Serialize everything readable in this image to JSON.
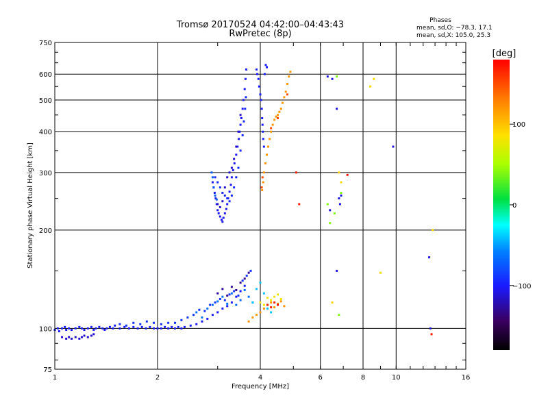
{
  "chart_data": {
    "type": "scatter",
    "title": "Tromsø 20170524 04:42:00–04:43:43",
    "subtitle": "RwPretec (8p)",
    "phase_box": {
      "title": "Phases",
      "line1": "mean, sd,O: −78.3, 17.1",
      "line2": "mean, sd,X: 105.0, 25.3"
    },
    "xlabel": "Frequency [MHz]",
    "ylabel": "Stationary phase Virtual Height [km]",
    "x_scale": "log",
    "y_scale": "log",
    "xlim": [
      1,
      16
    ],
    "ylim": [
      75,
      750
    ],
    "x_ticks": [
      {
        "value": 1,
        "label": "1"
      },
      {
        "value": 2,
        "label": "2"
      },
      {
        "value": 4,
        "label": "4"
      },
      {
        "value": 6,
        "label": "6"
      },
      {
        "value": 8,
        "label": "8"
      },
      {
        "value": 10,
        "label": "10"
      },
      {
        "value": 16,
        "label": "16"
      }
    ],
    "y_ticks": [
      {
        "value": 75,
        "label": "75"
      },
      {
        "value": 100,
        "label": "100"
      },
      {
        "value": 200,
        "label": "200"
      },
      {
        "value": 300,
        "label": "300"
      },
      {
        "value": 400,
        "label": "400"
      },
      {
        "value": 500,
        "label": "500"
      },
      {
        "value": 600,
        "label": "600"
      },
      {
        "value": 750,
        "label": "750"
      }
    ],
    "grid": true,
    "colorbar": {
      "label": "[deg]",
      "range": [
        -180,
        180
      ],
      "ticks": [
        {
          "value": 100,
          "label": "100"
        },
        {
          "value": 0,
          "label": "0"
        },
        {
          "value": -100,
          "label": "−100"
        }
      ]
    },
    "point_groups": [
      {
        "phase": -100,
        "points": [
          [
            1.0,
            99
          ],
          [
            1.02,
            100
          ],
          [
            1.03,
            98
          ],
          [
            1.05,
            100
          ],
          [
            1.07,
            101
          ],
          [
            1.08,
            99
          ],
          [
            1.1,
            100
          ],
          [
            1.12,
            99
          ],
          [
            1.15,
            100
          ],
          [
            1.18,
            101
          ],
          [
            1.2,
            100
          ],
          [
            1.22,
            99
          ],
          [
            1.25,
            100
          ],
          [
            1.28,
            101
          ],
          [
            1.3,
            99
          ],
          [
            1.32,
            100
          ],
          [
            1.35,
            101
          ],
          [
            1.38,
            100
          ],
          [
            1.4,
            99
          ],
          [
            1.42,
            100
          ],
          [
            1.45,
            101
          ],
          [
            1.48,
            100
          ],
          [
            1.5,
            102
          ],
          [
            1.55,
            100
          ],
          [
            1.6,
            101
          ],
          [
            1.65,
            100
          ],
          [
            1.7,
            101
          ],
          [
            1.75,
            100
          ],
          [
            1.8,
            101
          ],
          [
            1.85,
            100
          ],
          [
            1.9,
            101
          ],
          [
            1.95,
            100
          ],
          [
            2.0,
            100
          ],
          [
            2.05,
            100
          ],
          [
            2.1,
            101
          ],
          [
            2.15,
            100
          ],
          [
            2.2,
            101
          ],
          [
            2.25,
            100
          ],
          [
            2.3,
            101
          ],
          [
            2.35,
            100
          ],
          [
            2.4,
            101
          ],
          [
            2.5,
            102
          ],
          [
            2.6,
            103
          ],
          [
            2.7,
            105
          ],
          [
            2.8,
            107
          ],
          [
            2.9,
            110
          ],
          [
            3.0,
            112
          ],
          [
            3.1,
            115
          ],
          [
            3.2,
            117
          ],
          [
            3.3,
            120
          ],
          [
            3.4,
            125
          ],
          [
            3.5,
            130
          ],
          [
            3.6,
            135
          ]
        ]
      },
      {
        "phase": -115,
        "points": [
          [
            1.05,
            94
          ],
          [
            1.08,
            93
          ],
          [
            1.1,
            94
          ],
          [
            1.12,
            93
          ],
          [
            1.15,
            94
          ],
          [
            1.18,
            93
          ],
          [
            1.2,
            94
          ],
          [
            1.22,
            95
          ],
          [
            1.25,
            94
          ],
          [
            1.28,
            95
          ],
          [
            1.3,
            96
          ]
        ]
      },
      {
        "phase": -90,
        "points": [
          [
            1.55,
            103
          ],
          [
            1.62,
            102
          ],
          [
            1.7,
            104
          ],
          [
            1.78,
            103
          ],
          [
            1.86,
            105
          ],
          [
            1.95,
            104
          ],
          [
            2.05,
            103
          ],
          [
            2.15,
            104
          ],
          [
            2.25,
            104
          ],
          [
            2.35,
            106
          ],
          [
            2.45,
            108
          ],
          [
            2.55,
            110
          ],
          [
            2.65,
            114
          ],
          [
            2.75,
            113
          ],
          [
            2.85,
            118
          ],
          [
            2.95,
            120
          ],
          [
            3.05,
            123
          ],
          [
            3.15,
            122
          ],
          [
            3.25,
            127
          ],
          [
            3.35,
            130
          ],
          [
            3.45,
            126
          ],
          [
            3.55,
            140
          ],
          [
            3.65,
            145
          ],
          [
            3.75,
            150
          ]
        ]
      },
      {
        "phase": -65,
        "points": [
          [
            2.6,
            112
          ],
          [
            2.7,
            108
          ],
          [
            2.8,
            115
          ],
          [
            2.9,
            118
          ],
          [
            3.0,
            121
          ],
          [
            3.1,
            125
          ],
          [
            3.2,
            119
          ],
          [
            3.3,
            128
          ],
          [
            3.4,
            118
          ],
          [
            3.5,
            122
          ],
          [
            3.6,
            131
          ],
          [
            3.7,
            125
          ],
          [
            3.8,
            120
          ]
        ]
      },
      {
        "phase": -130,
        "points": [
          [
            3.0,
            128
          ],
          [
            3.1,
            132
          ],
          [
            3.2,
            126
          ],
          [
            3.3,
            134
          ],
          [
            3.4,
            131
          ],
          [
            3.5,
            138
          ],
          [
            3.6,
            142
          ],
          [
            3.7,
            148
          ]
        ]
      },
      {
        "phase": 120,
        "points": [
          [
            3.7,
            105
          ],
          [
            3.8,
            108
          ],
          [
            3.9,
            110
          ],
          [
            4.0,
            112
          ],
          [
            4.1,
            115
          ],
          [
            4.2,
            118
          ],
          [
            4.3,
            120
          ],
          [
            4.4,
            116
          ],
          [
            4.5,
            119
          ],
          [
            4.6,
            121
          ],
          [
            4.7,
            117
          ]
        ]
      },
      {
        "phase": 80,
        "points": [
          [
            4.0,
            120
          ],
          [
            4.1,
            118
          ],
          [
            4.2,
            124
          ],
          [
            4.3,
            122
          ],
          [
            4.4,
            125
          ],
          [
            4.5,
            127
          ],
          [
            4.6,
            123
          ]
        ]
      },
      {
        "phase": 170,
        "points": [
          [
            4.2,
            118
          ],
          [
            4.3,
            116
          ],
          [
            4.4,
            120
          ],
          [
            4.5,
            118
          ]
        ]
      },
      {
        "phase": -105,
        "points": [
          [
            2.9,
            280
          ],
          [
            2.92,
            270
          ],
          [
            2.94,
            260
          ],
          [
            2.96,
            250
          ],
          [
            2.98,
            240
          ],
          [
            3.0,
            230
          ],
          [
            3.02,
            225
          ],
          [
            3.05,
            220
          ],
          [
            3.08,
            215
          ],
          [
            3.1,
            212
          ],
          [
            3.12,
            218
          ],
          [
            3.15,
            225
          ],
          [
            3.18,
            232
          ],
          [
            3.2,
            240
          ],
          [
            3.22,
            250
          ],
          [
            3.25,
            262
          ],
          [
            3.28,
            275
          ],
          [
            3.3,
            290
          ],
          [
            3.33,
            305
          ],
          [
            3.36,
            320
          ],
          [
            3.4,
            340
          ],
          [
            3.43,
            360
          ],
          [
            3.46,
            380
          ],
          [
            3.48,
            400
          ],
          [
            3.5,
            420
          ],
          [
            3.52,
            440
          ],
          [
            3.55,
            470
          ],
          [
            3.57,
            500
          ],
          [
            3.6,
            540
          ],
          [
            3.62,
            580
          ],
          [
            3.64,
            620
          ]
        ]
      },
      {
        "phase": -95,
        "points": [
          [
            2.95,
            290
          ],
          [
            3.0,
            280
          ],
          [
            3.05,
            270
          ],
          [
            3.1,
            260
          ],
          [
            3.15,
            255
          ],
          [
            3.2,
            250
          ],
          [
            3.25,
            245
          ],
          [
            3.3,
            255
          ],
          [
            3.35,
            270
          ],
          [
            3.4,
            290
          ],
          [
            3.45,
            310
          ],
          [
            3.5,
            350
          ],
          [
            3.55,
            390
          ],
          [
            3.58,
            430
          ],
          [
            3.61,
            470
          ],
          [
            3.63,
            510
          ]
        ]
      },
      {
        "phase": -115,
        "points": [
          [
            3.0,
            240
          ],
          [
            3.05,
            235
          ],
          [
            3.1,
            245
          ],
          [
            3.15,
            270
          ],
          [
            3.2,
            290
          ],
          [
            3.25,
            300
          ],
          [
            3.3,
            310
          ],
          [
            3.35,
            330
          ],
          [
            3.4,
            360
          ],
          [
            3.45,
            400
          ],
          [
            3.5,
            450
          ]
        ]
      },
      {
        "phase": -75,
        "points": [
          [
            2.88,
            300
          ],
          [
            2.9,
            290
          ],
          [
            2.92,
            270
          ],
          [
            2.95,
            255
          ],
          [
            2.98,
            248
          ]
        ]
      },
      {
        "phase": -100,
        "points": [
          [
            3.9,
            620
          ],
          [
            3.92,
            600
          ],
          [
            3.95,
            580
          ],
          [
            3.97,
            550
          ],
          [
            4.0,
            520
          ],
          [
            4.02,
            500
          ],
          [
            4.04,
            470
          ],
          [
            4.05,
            440
          ],
          [
            4.06,
            420
          ],
          [
            4.07,
            400
          ],
          [
            4.08,
            380
          ],
          [
            4.1,
            360
          ],
          [
            4.12,
            600
          ],
          [
            4.15,
            640
          ],
          [
            4.18,
            630
          ]
        ]
      },
      {
        "phase": 120,
        "points": [
          [
            4.05,
            265
          ],
          [
            4.08,
            280
          ],
          [
            4.1,
            300
          ],
          [
            4.14,
            320
          ],
          [
            4.18,
            340
          ],
          [
            4.22,
            360
          ],
          [
            4.26,
            380
          ],
          [
            4.3,
            400
          ],
          [
            4.35,
            420
          ],
          [
            4.4,
            435
          ],
          [
            4.45,
            445
          ],
          [
            4.5,
            450
          ],
          [
            4.55,
            460
          ],
          [
            4.6,
            470
          ],
          [
            4.65,
            490
          ],
          [
            4.7,
            510
          ],
          [
            4.75,
            530
          ],
          [
            4.8,
            560
          ],
          [
            4.85,
            590
          ],
          [
            4.9,
            610
          ]
        ]
      },
      {
        "phase": 150,
        "points": [
          [
            4.04,
            270
          ],
          [
            4.06,
            290
          ],
          [
            4.3,
            410
          ],
          [
            4.5,
            440
          ],
          [
            4.8,
            520
          ]
        ]
      },
      {
        "phase": -110,
        "points": [
          [
            6.3,
            590
          ],
          [
            6.5,
            580
          ],
          [
            6.7,
            470
          ],
          [
            6.8,
            250
          ],
          [
            6.85,
            240
          ],
          [
            6.9,
            255
          ],
          [
            6.7,
            150
          ],
          [
            6.4,
            230
          ],
          [
            9.8,
            360
          ],
          [
            12.5,
            165
          ],
          [
            12.6,
            100
          ]
        ]
      },
      {
        "phase": 40,
        "points": [
          [
            6.3,
            240
          ],
          [
            6.4,
            210
          ],
          [
            6.6,
            225
          ],
          [
            6.9,
            260
          ],
          [
            6.7,
            590
          ],
          [
            6.8,
            110
          ]
        ]
      },
      {
        "phase": 90,
        "points": [
          [
            6.8,
            300
          ],
          [
            6.9,
            280
          ],
          [
            8.4,
            550
          ],
          [
            8.6,
            580
          ],
          [
            9.0,
            148
          ],
          [
            12.8,
            200
          ],
          [
            6.5,
            120
          ]
        ]
      },
      {
        "phase": 170,
        "points": [
          [
            5.1,
            300
          ],
          [
            5.2,
            240
          ],
          [
            7.2,
            295
          ],
          [
            12.7,
            96
          ]
        ]
      },
      {
        "phase": -40,
        "points": [
          [
            3.8,
            120
          ],
          [
            3.9,
            132
          ],
          [
            4.0,
            138
          ],
          [
            4.1,
            128
          ],
          [
            4.2,
            115
          ],
          [
            4.3,
            112
          ]
        ]
      }
    ]
  }
}
